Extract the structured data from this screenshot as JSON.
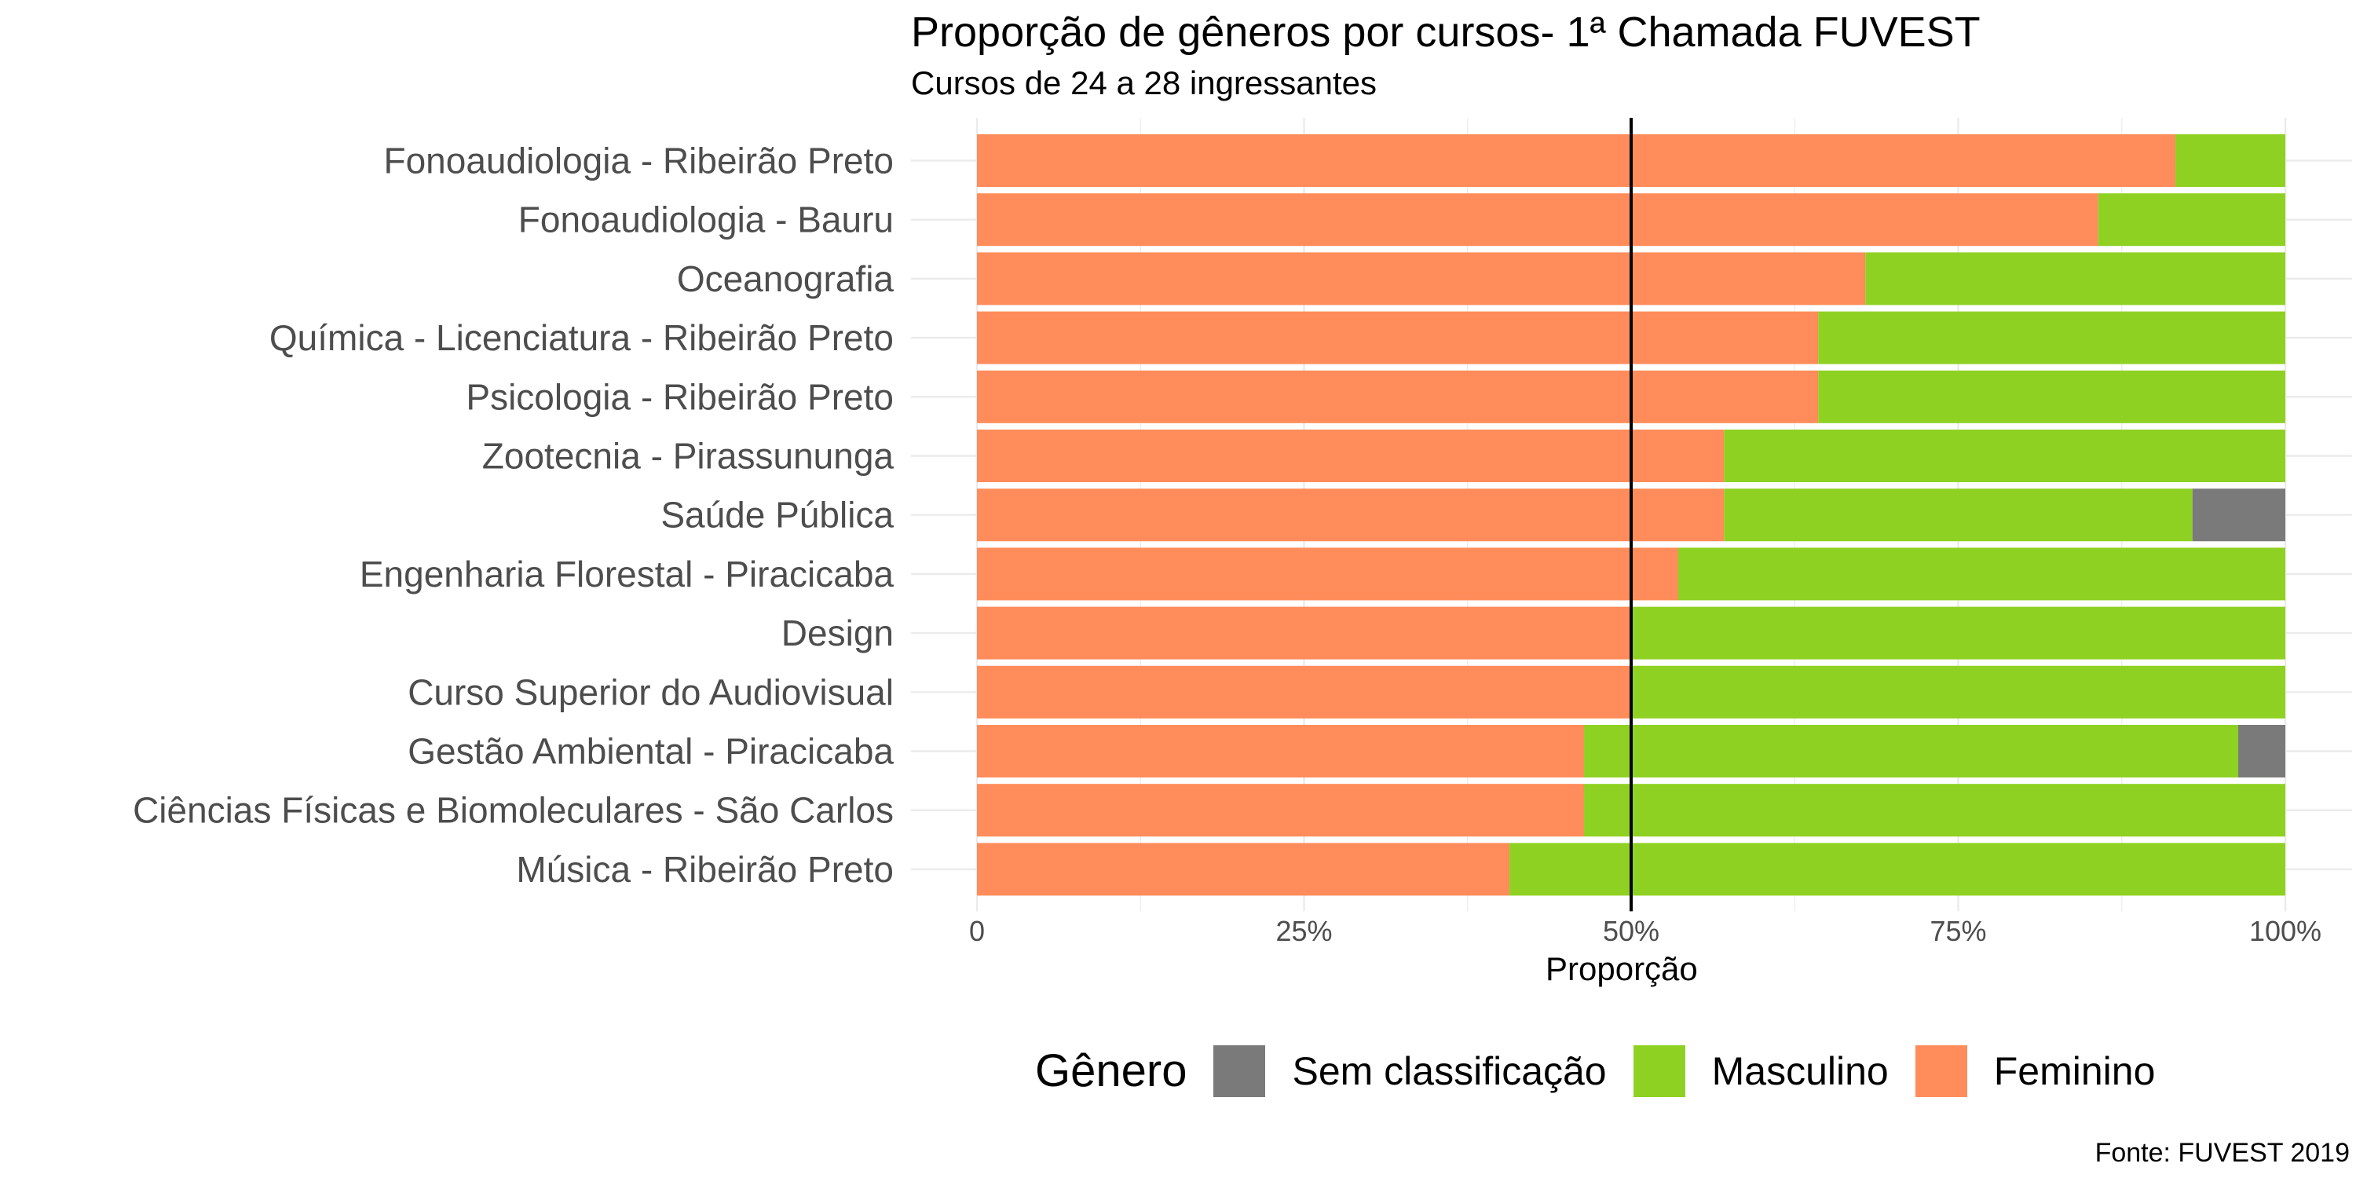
{
  "chart_data": {
    "type": "bar",
    "orientation": "horizontal",
    "stacked": "percent",
    "title": "Proporção de gêneros por cursos- 1ª Chamada FUVEST",
    "subtitle": "Cursos de 24 a 28 ingressantes",
    "xlabel": "Proporção",
    "ylabel": "",
    "caption": "Fonte: FUVEST 2019",
    "xlim": [
      0,
      1
    ],
    "x_ticks": [
      0,
      0.25,
      0.5,
      0.75,
      1
    ],
    "x_tick_labels": [
      "0",
      "25%",
      "50%",
      "75%",
      "100%"
    ],
    "reference_line": 0.5,
    "grid": true,
    "legend_title": "Gênero",
    "legend_position": "bottom",
    "categories": [
      "Fonoaudiologia - Ribeirão Preto",
      "Fonoaudiologia - Bauru",
      "Oceanografia",
      "Química - Licenciatura - Ribeirão Preto",
      "Psicologia - Ribeirão Preto",
      "Zootecnia - Pirassununga",
      "Saúde Pública",
      "Engenharia Florestal - Piracicaba",
      "Design",
      "Curso Superior do Audiovisual",
      "Gestão Ambiental - Piracicaba",
      "Ciências Físicas e Biomoleculares - São Carlos",
      "Música - Ribeirão Preto"
    ],
    "series": [
      {
        "name": "Feminino",
        "color": "#FF8C5A",
        "values": [
          0.916,
          0.857,
          0.679,
          0.643,
          0.643,
          0.571,
          0.571,
          0.536,
          0.5,
          0.5,
          0.464,
          0.464,
          0.407
        ]
      },
      {
        "name": "Masculino",
        "color": "#8FD122",
        "values": [
          0.084,
          0.143,
          0.321,
          0.357,
          0.357,
          0.429,
          0.358,
          0.464,
          0.5,
          0.5,
          0.5,
          0.536,
          0.593
        ]
      },
      {
        "name": "Sem classificação",
        "color": "#7A7A7A",
        "values": [
          0,
          0,
          0,
          0,
          0,
          0,
          0.071,
          0,
          0,
          0,
          0.036,
          0,
          0
        ]
      }
    ],
    "legend_order": [
      "Sem classificação",
      "Masculino",
      "Feminino"
    ]
  }
}
